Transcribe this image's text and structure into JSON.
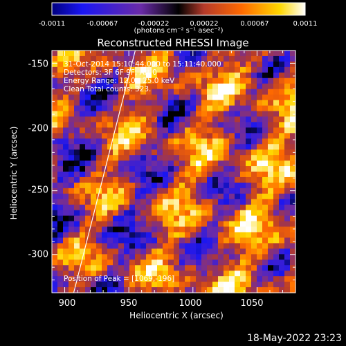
{
  "chart_data": {
    "type": "heatmap",
    "title": "Reconstructed RHESSI Image",
    "xlabel": "Heliocentric X (arcsec)",
    "ylabel": "Heliocentric Y (arcsec)",
    "xlim": [
      890,
      1080
    ],
    "ylim": [
      -330,
      -140
    ],
    "xticks": [
      900,
      950,
      1000,
      1050
    ],
    "yticks": [
      -150,
      -200,
      -250,
      -300
    ],
    "colorbar": {
      "range": [
        -0.0011,
        0.0011
      ],
      "ticks": [
        "-0.0011",
        "-0.00067",
        "-0.00022",
        "0.00022",
        "0.00067",
        "0.0011"
      ],
      "unit_label": "(photons cm⁻² s⁻¹ asec⁻²)",
      "colormap": [
        "#000000",
        "#1a16f2",
        "#6a2ba8",
        "#b53a2a",
        "#ff6a00",
        "#ffd700",
        "#ffffff"
      ]
    },
    "annotations": {
      "time_range": "31-Oct-2014 15:10:44.000 to 15:11:40.000",
      "detectors": "Detectors: 3F 6F 9F, Att 0",
      "energy_range": "Energy Range: 12.0 - 25.0 keV",
      "algorithm": "Clean    Total counts: 323.",
      "peak": "Position of Peak = [1069,-196]"
    },
    "limb_line": {
      "points": [
        [
          907,
          -330
        ],
        [
          955,
          -140
        ]
      ]
    },
    "timestamp": "18-May-2022 23:23"
  }
}
